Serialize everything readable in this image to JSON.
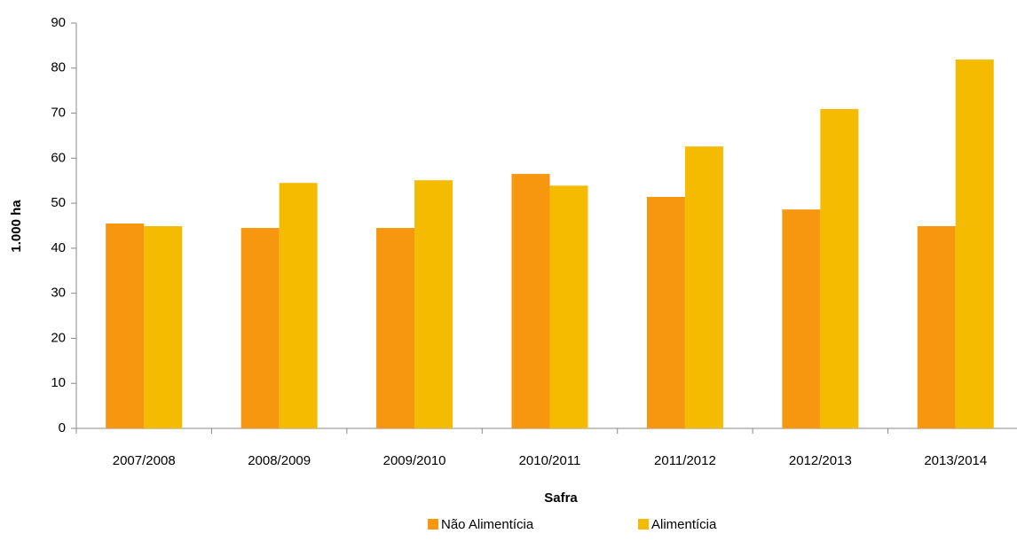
{
  "chart_data": {
    "type": "bar",
    "xlabel": "Safra",
    "ylabel": "1.000 ha",
    "categories": [
      "2007/2008",
      "2008/2009",
      "2009/2010",
      "2010/2011",
      "2011/2012",
      "2012/2013",
      "2013/2014"
    ],
    "series": [
      {
        "name": "Não Alimentícia",
        "color": "#f7960f",
        "values": [
          45.5,
          44.5,
          44.5,
          56.5,
          51.4,
          48.6,
          44.9
        ]
      },
      {
        "name": "Alimentícia",
        "color": "#f5bb00",
        "values": [
          44.9,
          54.5,
          55.1,
          53.9,
          62.6,
          70.9,
          81.9
        ]
      }
    ],
    "ylim": [
      0,
      90
    ],
    "yticks": [
      0,
      10,
      20,
      30,
      40,
      50,
      60,
      70,
      80,
      90
    ],
    "grid": false,
    "legend": "bottom"
  }
}
